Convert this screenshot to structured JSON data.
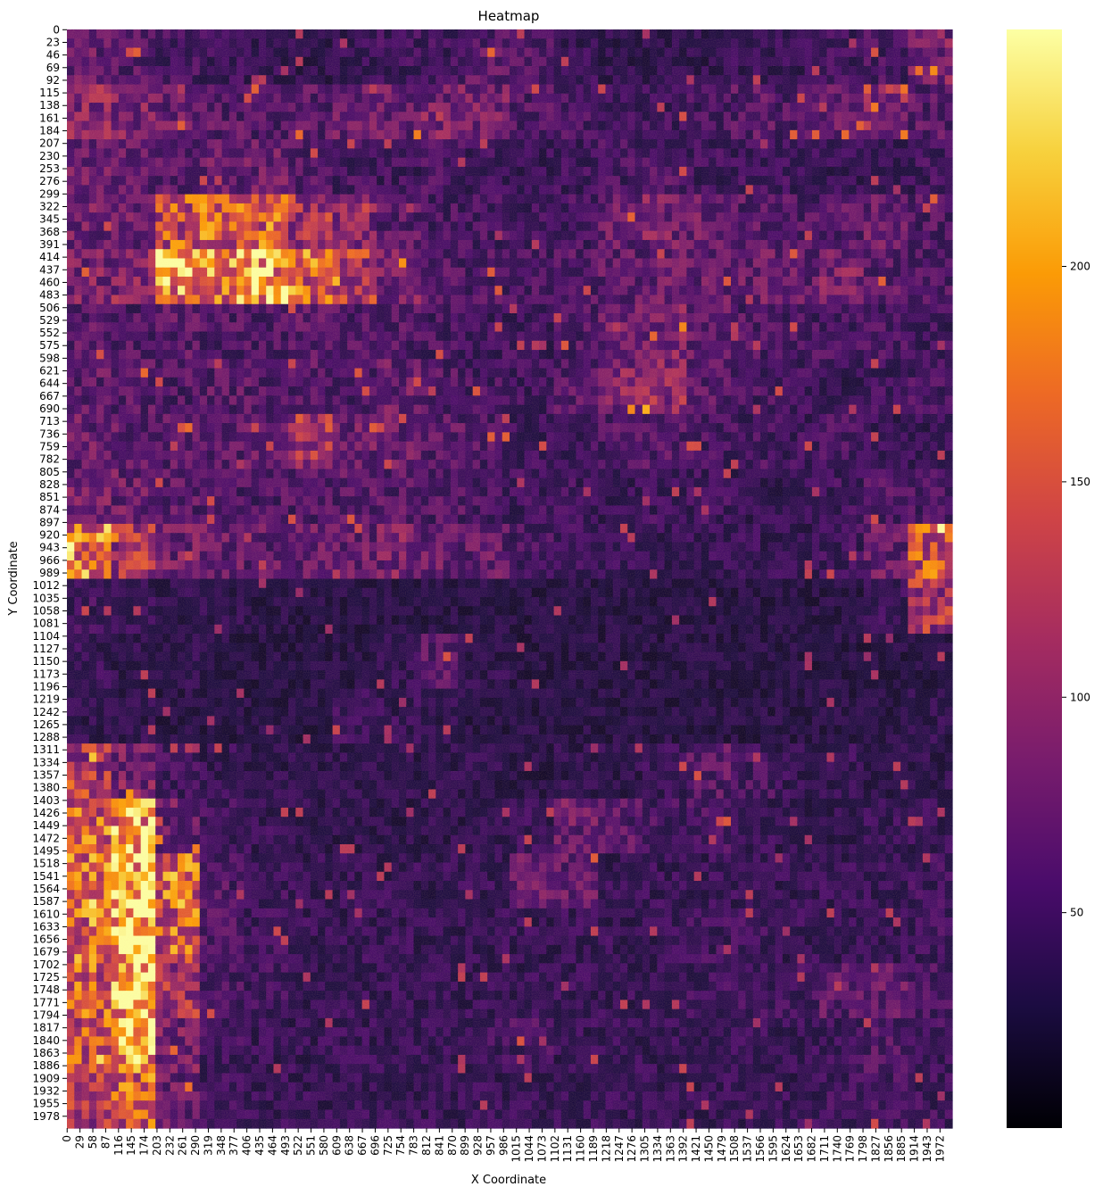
{
  "chart_data": {
    "type": "heatmap",
    "title": "Heatmap",
    "xlabel": "X Coordinate",
    "ylabel": "Y Coordinate",
    "colormap": "inferno",
    "colormap_stops": [
      "#000004",
      "#1b0c41",
      "#4a0c6b",
      "#781c6d",
      "#a52c60",
      "#cf4446",
      "#ed6925",
      "#fb9b06",
      "#f7d13d",
      "#fcffa4"
    ],
    "x_ticks": [
      0,
      29,
      58,
      87,
      116,
      145,
      174,
      203,
      232,
      261,
      290,
      319,
      348,
      377,
      406,
      435,
      464,
      493,
      522,
      551,
      580,
      609,
      638,
      667,
      696,
      725,
      754,
      783,
      812,
      841,
      870,
      899,
      928,
      957,
      986,
      1015,
      1044,
      1073,
      1102,
      1131,
      1160,
      1189,
      1218,
      1247,
      1276,
      1305,
      1334,
      1363,
      1392,
      1421,
      1450,
      1479,
      1508,
      1537,
      1566,
      1595,
      1624,
      1653,
      1682,
      1711,
      1740,
      1769,
      1798,
      1827,
      1856,
      1885,
      1914,
      1943,
      1972
    ],
    "y_ticks": [
      0,
      23,
      46,
      69,
      92,
      115,
      138,
      161,
      184,
      207,
      230,
      253,
      276,
      299,
      322,
      345,
      368,
      391,
      414,
      437,
      460,
      483,
      506,
      529,
      552,
      575,
      598,
      621,
      644,
      667,
      690,
      713,
      736,
      759,
      782,
      805,
      828,
      851,
      874,
      897,
      920,
      943,
      966,
      989,
      1012,
      1035,
      1058,
      1081,
      1104,
      1127,
      1150,
      1173,
      1196,
      1219,
      1242,
      1265,
      1288,
      1311,
      1334,
      1357,
      1380,
      1403,
      1426,
      1449,
      1472,
      1495,
      1518,
      1541,
      1564,
      1587,
      1610,
      1633,
      1656,
      1679,
      1702,
      1725,
      1748,
      1771,
      1794,
      1817,
      1840,
      1863,
      1886,
      1909,
      1932,
      1955,
      1978
    ],
    "xlim": [
      0,
      2000
    ],
    "ylim": [
      0,
      2000
    ],
    "colorbar": {
      "range": [
        0,
        255
      ],
      "ticks": [
        50,
        100,
        150,
        200
      ]
    },
    "approx_cell_values": {
      "note_grid": "coarse 20x20 summary of intensity (0-255), rows top to bottom",
      "rows": [
        [
          70,
          60,
          50,
          45,
          40,
          35,
          40,
          45,
          45,
          60,
          55,
          40,
          35,
          35,
          35,
          40,
          40,
          45,
          50,
          80
        ],
        [
          90,
          80,
          70,
          60,
          55,
          60,
          70,
          70,
          80,
          75,
          55,
          50,
          45,
          45,
          50,
          60,
          55,
          70,
          90,
          60
        ],
        [
          70,
          65,
          60,
          70,
          70,
          55,
          50,
          45,
          50,
          45,
          40,
          45,
          50,
          55,
          45,
          45,
          45,
          40,
          40,
          45
        ],
        [
          75,
          70,
          140,
          150,
          150,
          110,
          90,
          60,
          50,
          50,
          45,
          50,
          70,
          80,
          70,
          60,
          55,
          60,
          70,
          55
        ],
        [
          80,
          90,
          190,
          180,
          200,
          160,
          120,
          80,
          55,
          55,
          50,
          55,
          65,
          70,
          70,
          70,
          65,
          80,
          60,
          55
        ],
        [
          60,
          55,
          60,
          55,
          55,
          60,
          55,
          55,
          50,
          45,
          45,
          55,
          70,
          85,
          65,
          55,
          50,
          50,
          50,
          45
        ],
        [
          65,
          60,
          55,
          60,
          60,
          60,
          55,
          70,
          55,
          50,
          45,
          60,
          85,
          95,
          60,
          50,
          45,
          40,
          45,
          50
        ],
        [
          70,
          65,
          60,
          60,
          65,
          110,
          70,
          70,
          60,
          55,
          45,
          45,
          55,
          60,
          50,
          50,
          45,
          50,
          40,
          40
        ],
        [
          75,
          70,
          60,
          55,
          55,
          55,
          60,
          60,
          55,
          50,
          45,
          45,
          40,
          45,
          45,
          40,
          40,
          45,
          55,
          50
        ],
        [
          180,
          110,
          75,
          70,
          65,
          70,
          70,
          80,
          70,
          65,
          50,
          45,
          40,
          40,
          40,
          40,
          40,
          45,
          70,
          140
        ],
        [
          45,
          40,
          35,
          35,
          30,
          30,
          30,
          30,
          30,
          30,
          30,
          30,
          30,
          30,
          30,
          30,
          30,
          30,
          40,
          110
        ],
        [
          40,
          35,
          35,
          30,
          30,
          30,
          30,
          40,
          60,
          35,
          30,
          30,
          30,
          30,
          30,
          30,
          30,
          30,
          30,
          30
        ],
        [
          35,
          35,
          30,
          30,
          30,
          30,
          45,
          40,
          35,
          30,
          30,
          30,
          30,
          30,
          30,
          30,
          30,
          30,
          30,
          35
        ],
        [
          110,
          80,
          45,
          40,
          35,
          35,
          35,
          35,
          35,
          35,
          30,
          35,
          35,
          40,
          60,
          50,
          40,
          40,
          35,
          35
        ],
        [
          150,
          200,
          70,
          45,
          40,
          35,
          35,
          35,
          35,
          35,
          40,
          70,
          60,
          50,
          50,
          40,
          35,
          35,
          40,
          40
        ],
        [
          170,
          230,
          160,
          55,
          45,
          40,
          40,
          40,
          40,
          40,
          70,
          65,
          40,
          40,
          40,
          40,
          40,
          40,
          40,
          45
        ],
        [
          160,
          240,
          150,
          55,
          45,
          40,
          40,
          40,
          40,
          40,
          40,
          40,
          40,
          40,
          45,
          45,
          40,
          40,
          40,
          45
        ],
        [
          150,
          220,
          110,
          50,
          45,
          40,
          40,
          40,
          40,
          40,
          40,
          40,
          40,
          40,
          45,
          45,
          45,
          60,
          65,
          50
        ],
        [
          140,
          210,
          80,
          45,
          40,
          40,
          40,
          40,
          40,
          45,
          50,
          40,
          40,
          40,
          40,
          40,
          40,
          45,
          55,
          45
        ],
        [
          110,
          150,
          70,
          45,
          40,
          40,
          40,
          40,
          40,
          40,
          40,
          40,
          40,
          40,
          40,
          40,
          40,
          45,
          50,
          45
        ]
      ]
    }
  }
}
